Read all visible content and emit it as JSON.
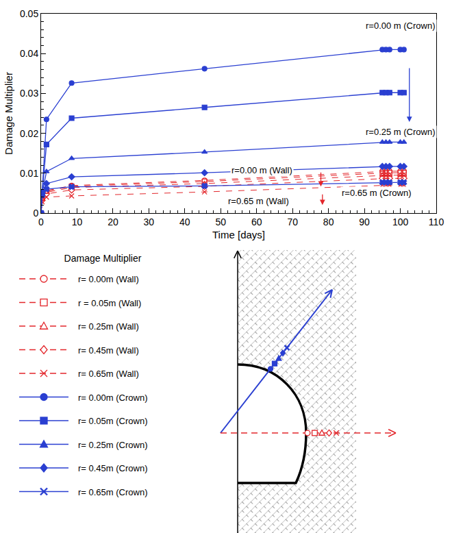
{
  "chart_data": {
    "type": "line",
    "x_label": "Time [days]",
    "y_label": "Damage Multiplier",
    "x": [
      0,
      0.3,
      1.5,
      8.5,
      45.5,
      95,
      96,
      97,
      100,
      101
    ],
    "xlim": [
      0,
      110
    ],
    "xticks": [
      0,
      10,
      20,
      30,
      40,
      50,
      60,
      70,
      80,
      90,
      100,
      110
    ],
    "ylim": [
      0,
      0.05
    ],
    "yticks": [
      0,
      0.01,
      0.02,
      0.03,
      0.04,
      0.05
    ],
    "grid": false,
    "legend": "bottom left",
    "legend_title": "Damage Multiplier",
    "series": [
      {
        "name": "r= 0.00m (Wall)",
        "color": "#e3262b",
        "marker": "circle-open",
        "line_style": "dash",
        "values": [
          0,
          0.0038,
          0.0056,
          0.0069,
          0.0082,
          0.0105,
          0.0105,
          0.0105,
          0.0105,
          0.0105
        ]
      },
      {
        "name": "r = 0.05m (Wall)",
        "color": "#e3262b",
        "marker": "square-open",
        "line_style": "dash",
        "values": [
          0,
          0.0037,
          0.0055,
          0.0067,
          0.0079,
          0.0101,
          0.0101,
          0.0101,
          0.0101,
          0.0101
        ]
      },
      {
        "name": "r= 0.25m (Wall)",
        "color": "#e3262b",
        "marker": "triangle-up-open",
        "line_style": "dash",
        "values": [
          0,
          0.0035,
          0.0052,
          0.0064,
          0.0074,
          0.0095,
          0.0095,
          0.0095,
          0.0095,
          0.0095
        ]
      },
      {
        "name": "r= 0.45m (Wall)",
        "color": "#e3262b",
        "marker": "diamond-open",
        "line_style": "dash",
        "values": [
          0,
          0.0032,
          0.0048,
          0.0058,
          0.0067,
          0.0087,
          0.0087,
          0.0087,
          0.0087,
          0.0087
        ]
      },
      {
        "name": "r= 0.65m (Wall)",
        "color": "#e3262b",
        "marker": "x-thin-open",
        "line_style": "dash",
        "values": [
          0,
          0.0028,
          0.004,
          0.0043,
          0.0053,
          0.007,
          0.007,
          0.007,
          0.007,
          0.007
        ]
      },
      {
        "name": "r= 0.00m (Crown)",
        "color": "#2a3fd1",
        "marker": "circle",
        "line_style": "solid",
        "values": [
          0,
          0.0052,
          0.0235,
          0.0326,
          0.0362,
          0.041,
          0.041,
          0.041,
          0.041,
          0.041
        ]
      },
      {
        "name": "r= 0.05m (Crown)",
        "color": "#2a3fd1",
        "marker": "square",
        "line_style": "solid",
        "values": [
          0,
          0.0051,
          0.0172,
          0.0238,
          0.0265,
          0.0302,
          0.0302,
          0.0302,
          0.0302,
          0.0302
        ]
      },
      {
        "name": "r= 0.25m (Crown)",
        "color": "#2a3fd1",
        "marker": "triangle-up",
        "line_style": "solid",
        "values": [
          0,
          0.005,
          0.0104,
          0.0137,
          0.0153,
          0.0178,
          0.0178,
          0.0178,
          0.0178,
          0.0178
        ]
      },
      {
        "name": "r= 0.45m (Crown)",
        "color": "#2a3fd1",
        "marker": "diamond",
        "line_style": "solid",
        "values": [
          0,
          0.0049,
          0.0074,
          0.0091,
          0.0101,
          0.0117,
          0.0117,
          0.0117,
          0.0117,
          0.0117
        ]
      },
      {
        "name": "r= 0.65m (Crown)",
        "color": "#2a3fd1",
        "marker": "x",
        "line_style": "solid",
        "values": [
          0,
          0.0045,
          0.006,
          0.0066,
          0.0068,
          0.0077,
          0.0077,
          0.0077,
          0.0077,
          0.0077
        ]
      }
    ],
    "annotations": [
      {
        "text": "r=0.00 m (Crown)",
        "x": 100,
        "y": 0.047
      },
      {
        "text": "r=0.25 m (Crown)",
        "x": 100,
        "y": 0.0203
      },
      {
        "text": "r=0.00 m (Wall)",
        "x": 61.5,
        "y": 0.0108
      },
      {
        "text": "r=0.65 m (Wall)",
        "x": 60.5,
        "y": 0.003
      },
      {
        "text": "r=0.65 m (Crown)",
        "x": 93.5,
        "y": 0.005
      }
    ]
  }
}
